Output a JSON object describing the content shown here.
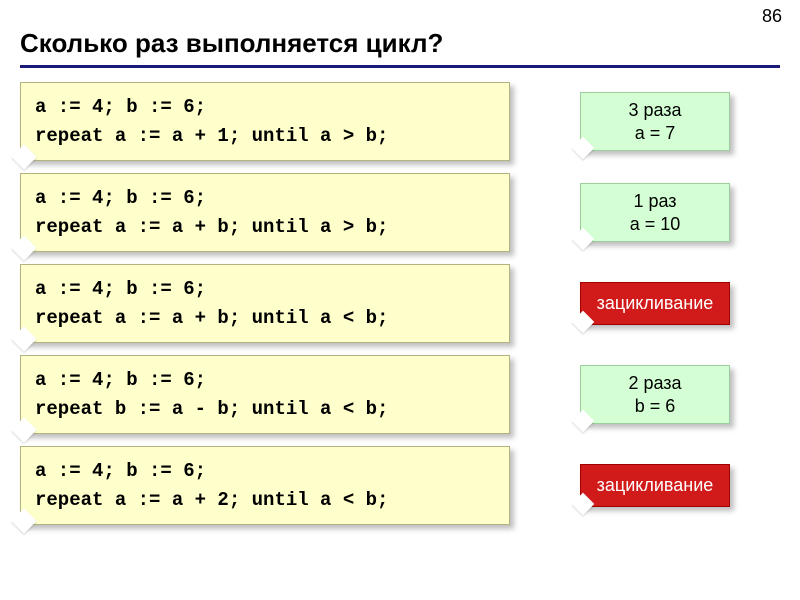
{
  "page_number": "86",
  "title": "Сколько раз выполняется цикл?",
  "colors": {
    "code_bg": "#feffca",
    "green_bg": "#d4ffd4",
    "red_bg": "#d11a1a",
    "title_underline": "#1a1a7a"
  },
  "rows": [
    {
      "code": {
        "line1": "a := 4; b := 6;",
        "line2": "repeat a := a + 1; until a > b;"
      },
      "answer": {
        "type": "green",
        "line1": "3 раза",
        "line2": "a = 7"
      }
    },
    {
      "code": {
        "line1": "a := 4; b := 6;",
        "line2": "repeat a := a + b; until a > b;"
      },
      "answer": {
        "type": "green",
        "line1": "1 раз",
        "line2": "a = 10"
      }
    },
    {
      "code": {
        "line1": "a := 4; b := 6;",
        "line2": "repeat a := a + b; until a < b;"
      },
      "answer": {
        "type": "red",
        "text": "зацикливание"
      }
    },
    {
      "code": {
        "line1": "a := 4; b := 6;",
        "line2": "repeat b := a - b; until a < b;"
      },
      "answer": {
        "type": "green",
        "line1": "2 раза",
        "line2": "b = 6"
      }
    },
    {
      "code": {
        "line1": "a := 4; b := 6;",
        "line2": "repeat a := a + 2; until a < b;"
      },
      "answer": {
        "type": "red",
        "text": "зацикливание"
      }
    }
  ]
}
